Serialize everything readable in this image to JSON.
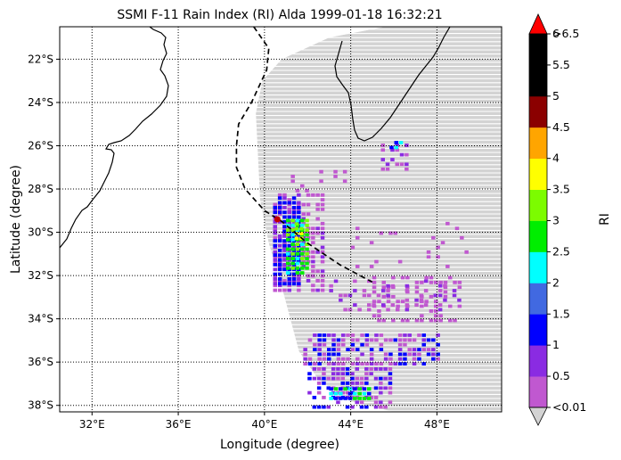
{
  "title": "SSMI F-11 Rain Index (RI) Alda 1999-01-18 16:32:21",
  "xlabel": "Longitude (degree)",
  "ylabel": "Latitude (degree)",
  "colorbar_label": "RI",
  "x_ticks": [
    {
      "value": 32,
      "label": "32°E"
    },
    {
      "value": 36,
      "label": "36°E"
    },
    {
      "value": 40,
      "label": "40°E"
    },
    {
      "value": 44,
      "label": "44°E"
    },
    {
      "value": 48,
      "label": "48°E"
    }
  ],
  "y_ticks": [
    {
      "value": -22,
      "label": "22°S"
    },
    {
      "value": -24,
      "label": "24°S"
    },
    {
      "value": -26,
      "label": "26°S"
    },
    {
      "value": -28,
      "label": "28°S"
    },
    {
      "value": -30,
      "label": "30°S"
    },
    {
      "value": -32,
      "label": "32°S"
    },
    {
      "value": -34,
      "label": "34°S"
    },
    {
      "value": -36,
      "label": "36°S"
    },
    {
      "value": -38,
      "label": "38°S"
    }
  ],
  "colorbar": {
    "tick_labels": [
      "<0.01",
      "0.5",
      "1",
      "1.5",
      "2",
      "2.5",
      "3",
      "3.5",
      "4",
      "4.5",
      "5",
      "5.5",
      "6",
      ">6.5"
    ],
    "bins": [
      {
        "color": "#c058d0"
      },
      {
        "color": "#8a2be2"
      },
      {
        "color": "#0000ff"
      },
      {
        "color": "#4169e1"
      },
      {
        "color": "#00ffff"
      },
      {
        "color": "#00ee00"
      },
      {
        "color": "#7cfc00"
      },
      {
        "color": "#ffff00"
      },
      {
        "color": "#ffa500"
      },
      {
        "color": "#8b0000"
      },
      {
        "color": "#000000"
      },
      {
        "color": "#000000"
      }
    ],
    "under_color": "#d3d3d3",
    "over_color": "#ff0000"
  },
  "chart_data": {
    "type": "heatmap",
    "title": "SSMI F-11 Rain Index (RI) Alda 1999-01-18 16:32:21",
    "xlabel": "Longitude (degree)",
    "ylabel": "Latitude (degree)",
    "xlim": [
      30.5,
      51
    ],
    "ylim": [
      -38.3,
      -20.5
    ],
    "grid": true,
    "grid_style": "dotted",
    "colorbar_label": "RI",
    "background_swath_color": "#d3d3d3",
    "storm_track": {
      "style": "dashed",
      "points": [
        [
          39.5,
          -20.5
        ],
        [
          40.2,
          -21.5
        ],
        [
          40.1,
          -22.5
        ],
        [
          39.4,
          -24.0
        ],
        [
          38.8,
          -25.0
        ],
        [
          38.7,
          -26.0
        ],
        [
          38.7,
          -27.0
        ],
        [
          39.1,
          -28.0
        ],
        [
          40.0,
          -29.0
        ],
        [
          40.8,
          -29.5
        ],
        [
          42.0,
          -30.5
        ],
        [
          43.5,
          -31.5
        ],
        [
          45.0,
          -32.3
        ]
      ],
      "current_position": [
        40.6,
        -29.4
      ]
    },
    "rain_regions": [
      {
        "level": "<0.01-0.5",
        "lon": [
          40.5,
          42.8
        ],
        "lat": [
          -32.5,
          -28.0
        ]
      },
      {
        "level": "1",
        "lon": [
          40.4,
          41.8
        ],
        "lat": [
          -32.4,
          -28.2
        ]
      },
      {
        "level": "2-3",
        "lon": [
          41.0,
          42.0
        ],
        "lat": [
          -31.8,
          -29.1
        ]
      },
      {
        "level": "0.5-1.5",
        "lon": [
          42.0,
          48.0
        ],
        "lat": [
          -36.0,
          -34.5
        ]
      },
      {
        "level": "1-2.5",
        "lon": [
          42.0,
          45.5
        ],
        "lat": [
          -38.0,
          -36.0
        ]
      },
      {
        "level": "0.5",
        "lon": [
          45.0,
          49.0
        ],
        "lat": [
          -34.0,
          -32.0
        ]
      },
      {
        "level": "0.5-2",
        "lon": [
          45.5,
          46.6
        ],
        "lat": [
          -27.0,
          -25.6
        ]
      }
    ]
  }
}
